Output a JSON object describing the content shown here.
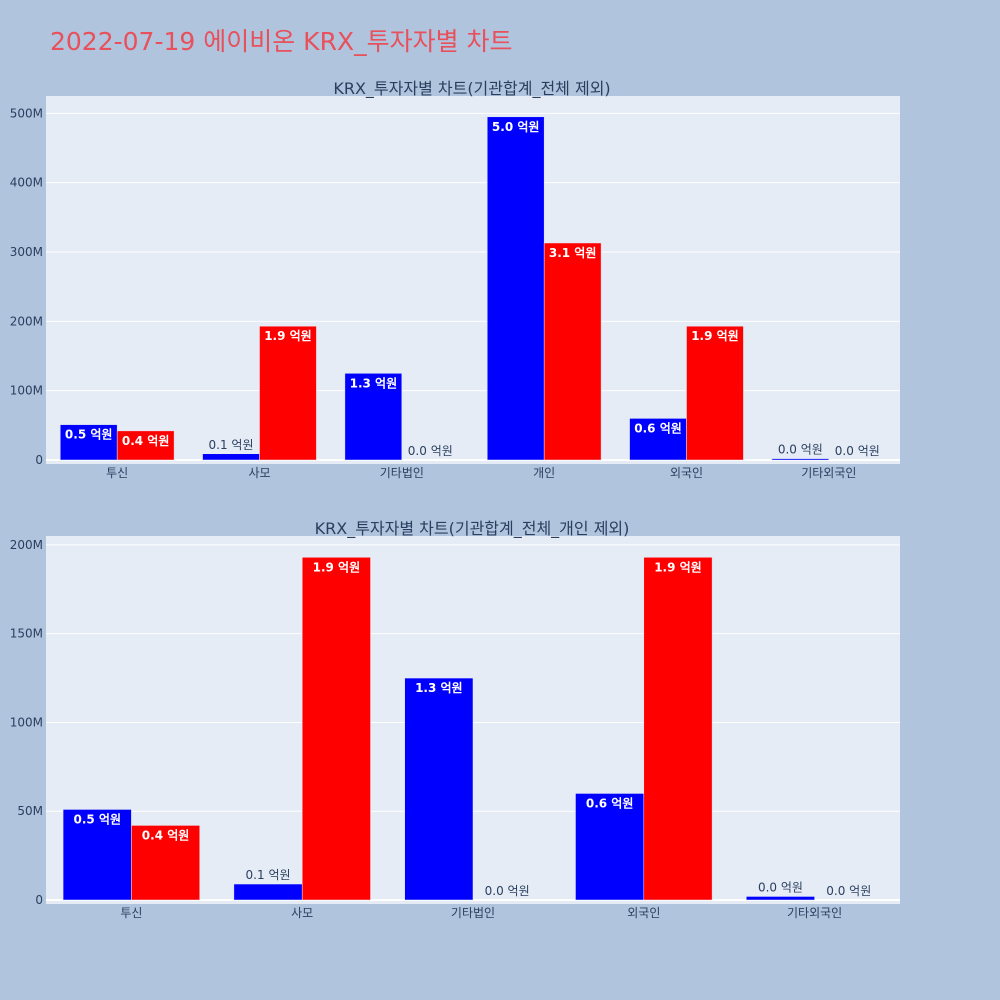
{
  "page_title": "2022-07-19 에이비온 KRX_투자자별 차트",
  "colors": {
    "background": "#b0c4de",
    "plot_bg": "#e5ecf6",
    "title": "#e8505b",
    "series_blue": "#0000ff",
    "series_red": "#ff0000"
  },
  "chart_data": [
    {
      "type": "bar",
      "title": "KRX_투자자별 차트(기관합계_전체 제외)",
      "categories": [
        "투신",
        "사모",
        "기타법인",
        "개인",
        "외국인",
        "기타외국인"
      ],
      "ylim": [
        0,
        525000000
      ],
      "yticks": [
        0,
        100000000,
        200000000,
        300000000,
        400000000,
        500000000
      ],
      "ytick_labels": [
        "0",
        "100M",
        "200M",
        "300M",
        "400M",
        "500M"
      ],
      "grid": true,
      "series": [
        {
          "color": "#0000ff",
          "values": [
            51000000,
            9000000,
            125000000,
            495000000,
            60000000,
            2000000
          ],
          "labels": [
            "0.5 억원",
            "0.1 억원",
            "1.3 억원",
            "5.0 억원",
            "0.6 억원",
            "0.0 억원"
          ]
        },
        {
          "color": "#ff0000",
          "values": [
            42000000,
            193000000,
            0,
            313000000,
            193000000,
            0
          ],
          "labels": [
            "0.4 억원",
            "1.9 억원",
            "0.0 억원",
            "3.1 억원",
            "1.9 억원",
            "0.0 억원"
          ]
        }
      ]
    },
    {
      "type": "bar",
      "title": "KRX_투자자별 차트(기관합계_전체_개인 제외)",
      "categories": [
        "투신",
        "사모",
        "기타법인",
        "외국인",
        "기타외국인"
      ],
      "ylim": [
        0,
        205000000
      ],
      "yticks": [
        0,
        50000000,
        100000000,
        150000000,
        200000000
      ],
      "ytick_labels": [
        "0",
        "50M",
        "100M",
        "150M",
        "200M"
      ],
      "grid": true,
      "series": [
        {
          "color": "#0000ff",
          "values": [
            51000000,
            9000000,
            125000000,
            60000000,
            2000000
          ],
          "labels": [
            "0.5 억원",
            "0.1 억원",
            "1.3 억원",
            "0.6 억원",
            "0.0 억원"
          ]
        },
        {
          "color": "#ff0000",
          "values": [
            42000000,
            193000000,
            0,
            193000000,
            0
          ],
          "labels": [
            "0.4 억원",
            "1.9 억원",
            "0.0 억원",
            "1.9 억원",
            "0.0 억원"
          ]
        }
      ]
    }
  ]
}
